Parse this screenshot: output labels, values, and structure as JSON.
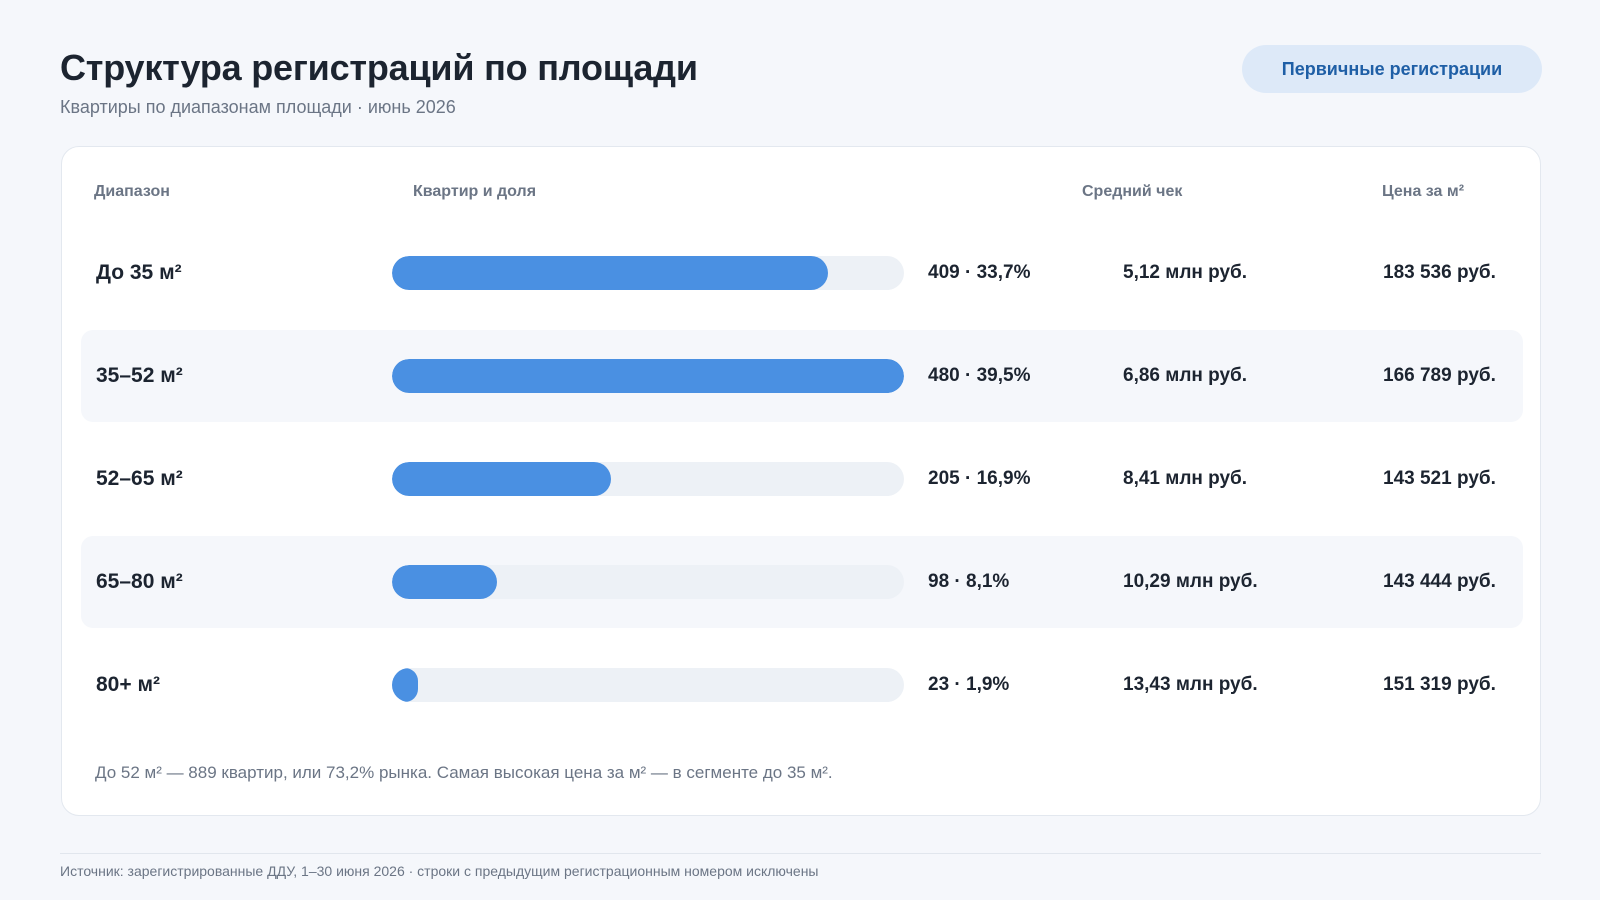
{
  "header": {
    "title": "Структура регистраций по площади",
    "subtitle": "Квартиры по диапазонам площади · июнь 2026",
    "segment_label": "Первичные регистрации"
  },
  "table": {
    "columns": {
      "range": "Диапазон",
      "count_share": "Квартир и доля",
      "avg_check": "Средний чек",
      "price_per_m2": "Цена за м²"
    }
  },
  "chart_data": {
    "type": "bar",
    "orientation": "horizontal",
    "categories": [
      "До 35 м²",
      "35–52 м²",
      "52–65 м²",
      "65–80 м²",
      "80+ м²"
    ],
    "series": [
      {
        "values": [
          409,
          480,
          205,
          98,
          23
        ]
      }
    ],
    "xlim": [
      0,
      480
    ],
    "rows": [
      {
        "range": "До 35 м²",
        "count": 409,
        "share_label": "409 · 33,7%",
        "avg_check": "5,12 млн руб.",
        "price_per_m2": "183 536 руб."
      },
      {
        "range": "35–52 м²",
        "count": 480,
        "share_label": "480 · 39,5%",
        "avg_check": "6,86 млн руб.",
        "price_per_m2": "166 789 руб."
      },
      {
        "range": "52–65 м²",
        "count": 205,
        "share_label": "205 · 16,9%",
        "avg_check": "8,41 млн руб.",
        "price_per_m2": "143 521 руб."
      },
      {
        "range": "65–80 м²",
        "count": 98,
        "share_label": "98 · 8,1%",
        "avg_check": "10,29 млн руб.",
        "price_per_m2": "143 444 руб."
      },
      {
        "range": "80+ м²",
        "count": 23,
        "share_label": "23 · 1,9%",
        "avg_check": "13,43 млн руб.",
        "price_per_m2": "151 319 руб."
      }
    ]
  },
  "note": "До 52 м² — 889 квартир, или 73,2% рынка. Самая высокая цена за м² — в сегменте до 35 м².",
  "source": "Источник: зарегистрированные ДДУ, 1–30 июня 2026 · строки с предыдущим регистрационным номером исключены",
  "colors": {
    "bar": "#4a90e2",
    "track": "#edf1f6",
    "pill_bg": "#dde9f8",
    "pill_text": "#1f5fa6"
  }
}
